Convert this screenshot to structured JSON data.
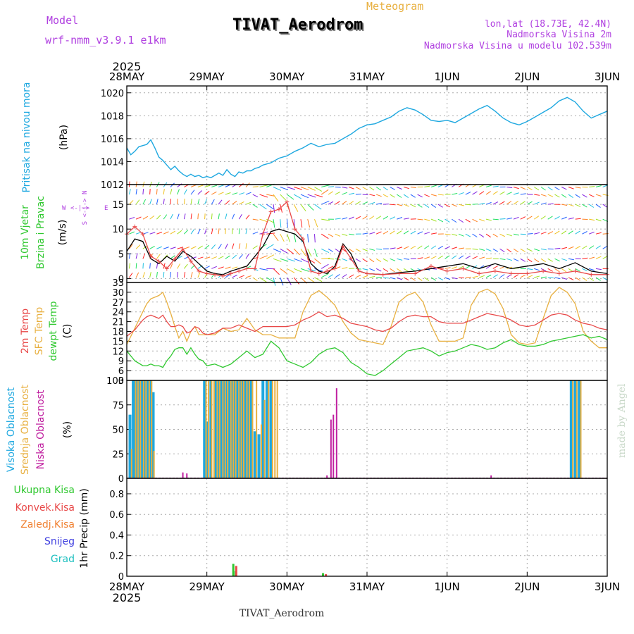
{
  "header": {
    "model_label": "Model",
    "model_name": "wrf-nmm_v3.9.1 e1km",
    "meteogram_label": "Meteogram",
    "station_title": "TIVAT_Aerodrom",
    "lonlat": "lon,lat (18.73E, 42.4N)",
    "elevation": "Nadmorska Visina 2m",
    "model_elevation": "Nadmorska Visina u modelu 102.539m",
    "bottom_title": "TIVAT_Aerodrom",
    "watermark": "made by Angel"
  },
  "time_axis": {
    "top_year": "2025",
    "bottom_year": "2025",
    "labels": [
      "28MAY",
      "29MAY",
      "30MAY",
      "31MAY",
      "1JUN",
      "2JUN",
      "3JUN"
    ]
  },
  "colors": {
    "pressure": "#1ea8e0",
    "temp2m": "#e84848",
    "sfc_temp": "#e8b040",
    "dewpt": "#30c830",
    "wind_speed": "#000000",
    "wind_gust": "#e84848",
    "high_cloud": "#1ea8e0",
    "mid_cloud": "#e8b040",
    "low_cloud": "#c020a0",
    "total_precip": "#30c830",
    "conv_precip": "#e84848",
    "frozen_precip": "#f08030",
    "snow": "#4040e0",
    "graupel": "#20c0c0",
    "title_purple": "#b040e0"
  },
  "chart_data": [
    {
      "type": "line",
      "panel": "pressure",
      "ylabel_name": "Pritisak na nivou mora",
      "ylabel_unit": "(hPa)",
      "yticks": [
        "1012",
        "1014",
        "1016",
        "1018",
        "1020"
      ],
      "ylim": [
        1012,
        1020.6
      ],
      "x_days": [
        0,
        0.05,
        0.1,
        0.15,
        0.2,
        0.25,
        0.3,
        0.35,
        0.4,
        0.45,
        0.5,
        0.55,
        0.6,
        0.65,
        0.7,
        0.75,
        0.8,
        0.85,
        0.9,
        0.95,
        1.0,
        1.05,
        1.1,
        1.15,
        1.2,
        1.25,
        1.3,
        1.35,
        1.4,
        1.45,
        1.5,
        1.55,
        1.6,
        1.65,
        1.7,
        1.75,
        1.8,
        1.85,
        1.9,
        1.95,
        2.0,
        2.1,
        2.2,
        2.3,
        2.4,
        2.5,
        2.6,
        2.7,
        2.8,
        2.9,
        3.0,
        3.1,
        3.2,
        3.3,
        3.4,
        3.5,
        3.6,
        3.7,
        3.8,
        3.9,
        4.0,
        4.1,
        4.2,
        4.3,
        4.4,
        4.5,
        4.6,
        4.7,
        4.8,
        4.9,
        5.0,
        5.1,
        5.2,
        5.3,
        5.4,
        5.5,
        5.6,
        5.7,
        5.8,
        5.9,
        6.0
      ],
      "series": [
        {
          "values": [
            1015.2,
            1014.6,
            1014.9,
            1015.3,
            1015.4,
            1015.5,
            1015.9,
            1015.2,
            1014.4,
            1014.1,
            1013.7,
            1013.3,
            1013.6,
            1013.2,
            1012.9,
            1012.7,
            1012.9,
            1012.7,
            1012.8,
            1012.6,
            1012.7,
            1012.6,
            1012.8,
            1013.0,
            1012.8,
            1013.3,
            1012.9,
            1012.7,
            1013.1,
            1013.0,
            1013.2,
            1013.2,
            1013.4,
            1013.5,
            1013.7,
            1013.8,
            1013.9,
            1014.1,
            1014.3,
            1014.4,
            1014.5,
            1014.9,
            1015.2,
            1015.6,
            1015.3,
            1015.5,
            1015.6,
            1016.0,
            1016.4,
            1016.9,
            1017.2,
            1017.3,
            1017.6,
            1017.9,
            1018.4,
            1018.7,
            1018.5,
            1018.1,
            1017.6,
            1017.5,
            1017.6,
            1017.4,
            1017.8,
            1018.2,
            1018.6,
            1018.9,
            1018.4,
            1017.8,
            1017.4,
            1017.2,
            1017.5,
            1017.9,
            1018.3,
            1018.7,
            1019.3,
            1019.6,
            1019.2,
            1018.4,
            1017.8,
            1018.1,
            1018.4
          ]
        }
      ]
    },
    {
      "type": "line",
      "panel": "wind",
      "ylabel_name": "10m Vjetar",
      "ylabel_name2": "Brzina i Pravac",
      "ylabel_unit": "(m/s)",
      "yticks": [
        "0",
        "5",
        "10",
        "15"
      ],
      "ylim": [
        -0.8,
        19
      ],
      "compass": [
        "W",
        "<-|->",
        "E"
      ],
      "compass_vertical": "S <-|-> N",
      "x_days": [
        0,
        0.1,
        0.2,
        0.3,
        0.4,
        0.5,
        0.6,
        0.7,
        0.8,
        0.9,
        1.0,
        1.1,
        1.2,
        1.3,
        1.4,
        1.5,
        1.6,
        1.7,
        1.8,
        1.9,
        2.0,
        2.1,
        2.2,
        2.3,
        2.4,
        2.5,
        2.6,
        2.7,
        2.8,
        2.9,
        3.0,
        3.2,
        3.4,
        3.6,
        3.8,
        4.0,
        4.2,
        4.4,
        4.6,
        4.8,
        5.0,
        5.2,
        5.4,
        5.6,
        5.8,
        6.0
      ],
      "series": [
        {
          "name": "speed",
          "values": [
            5.5,
            8.0,
            7.5,
            4.0,
            3.0,
            4.5,
            3.5,
            5.5,
            4.5,
            3.0,
            1.5,
            1.0,
            0.8,
            1.5,
            2.0,
            2.5,
            4.5,
            6.5,
            9.5,
            10.0,
            9.5,
            9.0,
            7.5,
            3.0,
            1.5,
            1.0,
            2.5,
            7.0,
            5.0,
            1.5,
            1.0,
            0.8,
            1.2,
            1.5,
            2.0,
            2.5,
            3.0,
            2.0,
            3.0,
            2.0,
            2.5,
            3.0,
            2.0,
            3.2,
            1.5,
            1.0
          ]
        },
        {
          "name": "gust",
          "values": [
            9.0,
            10.5,
            9.0,
            4.5,
            3.5,
            2.0,
            4.0,
            6.0,
            3.5,
            1.5,
            1.0,
            0.8,
            0.5,
            1.0,
            1.5,
            2.0,
            2.0,
            9.0,
            13.5,
            14.0,
            15.5,
            10.0,
            8.0,
            1.5,
            1.0,
            1.5,
            2.0,
            6.5,
            4.0,
            1.5,
            1.0,
            0.8,
            1.0,
            1.0,
            2.5,
            1.5,
            2.0,
            1.0,
            1.5,
            1.0,
            1.0,
            1.5,
            1.0,
            1.5,
            0.8,
            0.8
          ]
        }
      ]
    },
    {
      "type": "line",
      "panel": "temperature",
      "ylabel_names": [
        "2m Temp",
        "SFC Temp",
        "dewpt Temp"
      ],
      "ylabel_unit": "(C)",
      "yticks": [
        "3",
        "6",
        "9",
        "12",
        "15",
        "18",
        "21",
        "24",
        "27",
        "30",
        "33"
      ],
      "ylim": [
        3,
        33
      ],
      "x_days": [
        0,
        0.1,
        0.2,
        0.25,
        0.3,
        0.35,
        0.4,
        0.45,
        0.5,
        0.55,
        0.6,
        0.65,
        0.7,
        0.75,
        0.8,
        0.85,
        0.9,
        0.95,
        1.0,
        1.1,
        1.2,
        1.3,
        1.4,
        1.5,
        1.6,
        1.7,
        1.8,
        1.9,
        2.0,
        2.1,
        2.2,
        2.3,
        2.4,
        2.5,
        2.6,
        2.7,
        2.8,
        2.9,
        3.0,
        3.1,
        3.2,
        3.3,
        3.4,
        3.5,
        3.6,
        3.7,
        3.8,
        3.9,
        4.0,
        4.1,
        4.2,
        4.3,
        4.4,
        4.5,
        4.6,
        4.7,
        4.8,
        4.9,
        5.0,
        5.1,
        5.2,
        5.3,
        5.4,
        5.5,
        5.6,
        5.7,
        5.8,
        5.9,
        6.0
      ],
      "series": [
        {
          "name": "2m Temp",
          "values": [
            16.5,
            18.5,
            21.5,
            22.5,
            23.0,
            22.5,
            22.0,
            23.0,
            21.0,
            19.5,
            19.5,
            20.0,
            19.5,
            17.5,
            18.0,
            19.5,
            19.0,
            17.5,
            17.0,
            17.5,
            19.0,
            19.0,
            20.0,
            19.0,
            18.0,
            19.5,
            19.5,
            19.5,
            19.5,
            20.0,
            21.5,
            22.5,
            24.0,
            22.5,
            23.0,
            22.0,
            20.5,
            20.0,
            19.5,
            18.5,
            18.0,
            19.0,
            21.0,
            22.5,
            23.0,
            22.5,
            22.5,
            21.0,
            20.5,
            20.5,
            20.5,
            21.5,
            22.5,
            23.5,
            23.0,
            22.5,
            21.5,
            20.0,
            19.5,
            20.0,
            21.5,
            23.0,
            23.5,
            23.0,
            21.5,
            20.5,
            20.0,
            19.0,
            18.5
          ]
        },
        {
          "name": "SFC Temp",
          "values": [
            14.0,
            19.0,
            24.0,
            26.5,
            28.0,
            28.5,
            29.0,
            30.0,
            27.0,
            23.5,
            19.5,
            16.0,
            18.0,
            15.0,
            18.0,
            19.5,
            17.0,
            17.0,
            17.0,
            17.0,
            19.0,
            18.0,
            18.5,
            22.0,
            18.5,
            17.0,
            17.0,
            16.0,
            16.0,
            16.0,
            24.0,
            29.0,
            30.5,
            28.5,
            26.0,
            21.0,
            17.5,
            15.5,
            15.0,
            14.5,
            14.0,
            19.5,
            27.0,
            29.0,
            30.0,
            27.0,
            20.0,
            15.0,
            15.0,
            15.0,
            16.0,
            26.0,
            30.0,
            31.0,
            29.5,
            25.0,
            17.0,
            14.5,
            14.0,
            14.5,
            22.0,
            29.0,
            31.5,
            30.0,
            26.5,
            18.0,
            15.0,
            13.0,
            13.0
          ]
        },
        {
          "name": "dewpt Temp",
          "values": [
            12.0,
            9.0,
            7.5,
            7.5,
            8.0,
            7.5,
            7.5,
            7.0,
            9.0,
            10.5,
            12.5,
            13.0,
            13.0,
            11.0,
            13.0,
            11.0,
            9.5,
            9.0,
            7.5,
            8.0,
            7.0,
            8.0,
            10.0,
            12.0,
            10.0,
            11.0,
            15.0,
            13.0,
            9.0,
            8.0,
            7.0,
            8.5,
            11.0,
            12.5,
            13.0,
            11.5,
            8.5,
            7.0,
            5.0,
            4.5,
            6.0,
            8.0,
            10.0,
            12.0,
            12.5,
            13.0,
            12.0,
            10.5,
            11.5,
            12.0,
            13.0,
            14.0,
            13.5,
            12.5,
            13.0,
            14.5,
            15.5,
            14.0,
            13.5,
            13.5,
            14.0,
            15.0,
            15.5,
            16.0,
            16.5,
            17.0,
            16.0,
            16.5,
            15.5
          ]
        }
      ]
    },
    {
      "type": "bar",
      "panel": "cloud",
      "ylabel_names": [
        "Visoka Oblacnost",
        "Srednja Oblacnost",
        "Niska Oblacnost"
      ],
      "ylabel_unit": "(%)",
      "yticks": [
        "0",
        "25",
        "50",
        "75",
        "100"
      ],
      "ylim": [
        0,
        100
      ],
      "series": [
        {
          "name": "Visoka Oblacnost",
          "x_days": [
            0.04,
            0.08,
            0.1,
            0.12,
            0.15,
            0.18,
            0.2,
            0.23,
            0.26,
            0.3,
            0.33,
            0.97,
            1.0,
            1.05,
            1.1,
            1.12,
            1.15,
            1.18,
            1.22,
            1.25,
            1.28,
            1.32,
            1.35,
            1.38,
            1.42,
            1.45,
            1.48,
            1.52,
            1.55,
            1.6,
            1.65,
            1.7,
            1.75,
            1.8,
            5.55,
            5.6,
            5.65
          ],
          "values": [
            65,
            100,
            100,
            100,
            100,
            100,
            100,
            100,
            100,
            100,
            88,
            100,
            58,
            100,
            100,
            100,
            100,
            100,
            100,
            100,
            100,
            100,
            100,
            100,
            100,
            100,
            100,
            100,
            100,
            48,
            45,
            100,
            100,
            100,
            100,
            100,
            100
          ]
        },
        {
          "name": "Srednja Oblacnost",
          "x_days": [
            0.06,
            0.11,
            0.14,
            0.17,
            0.21,
            0.24,
            0.28,
            0.31,
            0.34,
            0.99,
            1.02,
            1.06,
            1.09,
            1.13,
            1.16,
            1.2,
            1.23,
            1.26,
            1.3,
            1.33,
            1.36,
            1.4,
            1.43,
            1.46,
            1.5,
            1.53,
            1.57,
            1.62,
            1.68,
            1.72,
            1.77,
            1.82,
            1.85,
            1.88,
            5.57,
            5.62,
            5.67
          ],
          "values": [
            30,
            100,
            100,
            100,
            100,
            100,
            100,
            100,
            28,
            100,
            100,
            100,
            100,
            100,
            100,
            100,
            100,
            100,
            100,
            100,
            100,
            100,
            100,
            100,
            100,
            100,
            100,
            100,
            55,
            80,
            100,
            100,
            100,
            100,
            100,
            100,
            100
          ]
        },
        {
          "name": "Niska Oblacnost",
          "x_days": [
            0.7,
            0.75,
            2.5,
            2.55,
            2.58,
            2.62,
            4.55
          ],
          "values": [
            6,
            5,
            3,
            60,
            65,
            92,
            3
          ]
        }
      ]
    },
    {
      "type": "bar",
      "panel": "precip",
      "ylabel_names": [
        "Ukupna Kisa",
        "Konvek.Kisa",
        "Zaledj.Kisa",
        "Snijeg",
        "Grad"
      ],
      "ylabel_unit": "1hr Precip (mm)",
      "yticks": [
        "0",
        "0.2",
        "0.4",
        "0.6",
        "0.8"
      ],
      "ylim": [
        0,
        0.95
      ],
      "series": [
        {
          "name": "Ukupna Kisa",
          "x_days": [
            1.33,
            1.36,
            2.45
          ],
          "values": [
            0.12,
            0.05,
            0.03
          ]
        },
        {
          "name": "Konvek.Kisa",
          "x_days": [
            1.34,
            2.46
          ],
          "values": [
            0.1,
            0.02
          ]
        }
      ]
    }
  ]
}
